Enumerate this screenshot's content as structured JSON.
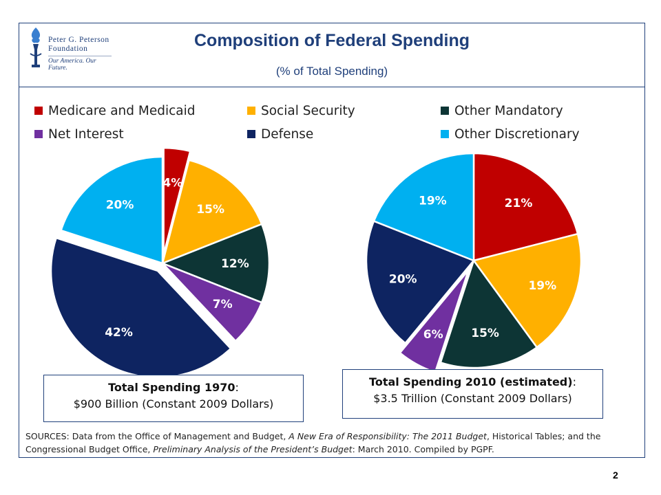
{
  "header": {
    "title": "Composition of Federal Spending",
    "subtitle": "(% of Total Spending)",
    "logo": {
      "name_line1": "Peter G. Peterson",
      "name_line2": "Foundation",
      "tagline": "Our America. Our Future.",
      "icon": "torch-icon"
    }
  },
  "colors": {
    "brand": "#1f3f7a",
    "medicare_medicaid": "#c00000",
    "social_security": "#ffb000",
    "other_mandatory": "#0d3535",
    "net_interest": "#7030a0",
    "defense": "#0e2461",
    "other_discretionary": "#00b0f0"
  },
  "legend": [
    {
      "label": "Medicare and Medicaid",
      "color": "#c00000"
    },
    {
      "label": "Social Security",
      "color": "#ffb000"
    },
    {
      "label": "Other Mandatory",
      "color": "#0d3535"
    },
    {
      "label": "Net Interest",
      "color": "#7030a0"
    },
    {
      "label": "Defense",
      "color": "#0e2461"
    },
    {
      "label": "Other Discretionary",
      "color": "#00b0f0"
    }
  ],
  "chart_data": [
    {
      "type": "pie",
      "year": "1970",
      "categories": [
        "Medicare and Medicaid",
        "Social Security",
        "Other Mandatory",
        "Net Interest",
        "Defense",
        "Other Discretionary"
      ],
      "values": [
        4,
        15,
        12,
        7,
        42,
        20
      ],
      "labels": [
        "4%",
        "15%",
        "12%",
        "7%",
        "42%",
        "20%"
      ],
      "exploded": [
        "Medicare and Medicaid",
        "Defense"
      ],
      "total_heading": "Total Spending 1970",
      "total_value": "$900 Billion (Constant 2009 Dollars)"
    },
    {
      "type": "pie",
      "year": "2010 (estimated)",
      "categories": [
        "Medicare and Medicaid",
        "Social Security",
        "Other Mandatory",
        "Net Interest",
        "Defense",
        "Other Discretionary"
      ],
      "values": [
        21,
        19,
        15,
        6,
        20,
        19
      ],
      "labels": [
        "21%",
        "19%",
        "15%",
        "6%",
        "20%",
        "19%"
      ],
      "exploded": [
        "Net Interest"
      ],
      "total_heading": "Total Spending 2010 (estimated)",
      "total_value": "$3.5 Trillion (Constant 2009 Dollars)"
    }
  ],
  "sources": {
    "prefix": "SOURCES: Data from the Office of Management and Budget, ",
    "doc1": "A New Era of Responsibility: The 2011 Budget",
    "middle": ", Historical Tables; and the Congressional Budget Office, ",
    "doc2": "Preliminary Analysis of the President’s Budget",
    "suffix": ": March 2010. Compiled by PGPF."
  },
  "page_number": "2"
}
